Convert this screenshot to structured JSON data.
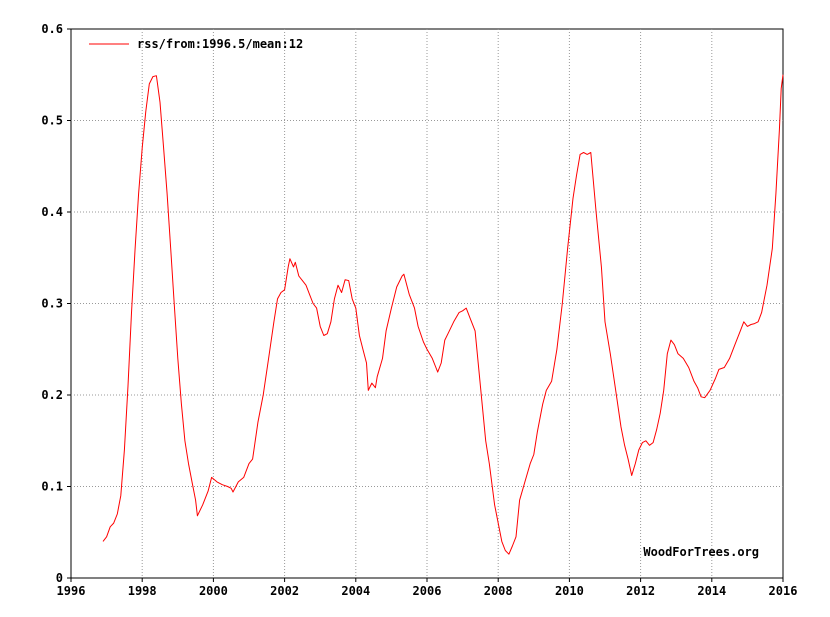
{
  "chart_data": {
    "type": "line",
    "x_unit": "year",
    "xlim": [
      1996,
      2016
    ],
    "ylim": [
      0,
      0.6
    ],
    "x_ticks": [
      "1996",
      "1998",
      "2000",
      "2002",
      "2004",
      "2006",
      "2008",
      "2010",
      "2012",
      "2014",
      "2016"
    ],
    "y_ticks": [
      "0",
      "0.1",
      "0.2",
      "0.3",
      "0.4",
      "0.5",
      "0.6"
    ],
    "grid": true,
    "legend_position": "top-left",
    "credit": "WoodForTrees.org",
    "series": [
      {
        "name": "rss/from:1996.5/mean:12",
        "color": "#ff0000",
        "points": [
          [
            1996.9,
            0.04
          ],
          [
            1997.0,
            0.045
          ],
          [
            1997.1,
            0.056
          ],
          [
            1997.2,
            0.06
          ],
          [
            1997.3,
            0.07
          ],
          [
            1997.4,
            0.09
          ],
          [
            1997.5,
            0.14
          ],
          [
            1997.6,
            0.21
          ],
          [
            1997.7,
            0.29
          ],
          [
            1997.8,
            0.36
          ],
          [
            1997.9,
            0.42
          ],
          [
            1998.0,
            0.47
          ],
          [
            1998.1,
            0.51
          ],
          [
            1998.2,
            0.54
          ],
          [
            1998.3,
            0.548
          ],
          [
            1998.4,
            0.549
          ],
          [
            1998.5,
            0.52
          ],
          [
            1998.6,
            0.47
          ],
          [
            1998.7,
            0.42
          ],
          [
            1998.8,
            0.36
          ],
          [
            1998.9,
            0.3
          ],
          [
            1999.0,
            0.24
          ],
          [
            1999.1,
            0.19
          ],
          [
            1999.2,
            0.15
          ],
          [
            1999.3,
            0.125
          ],
          [
            1999.4,
            0.105
          ],
          [
            1999.5,
            0.085
          ],
          [
            1999.55,
            0.068
          ],
          [
            1999.7,
            0.08
          ],
          [
            1999.85,
            0.095
          ],
          [
            1999.95,
            0.11
          ],
          [
            2000.1,
            0.105
          ],
          [
            2000.25,
            0.102
          ],
          [
            2000.4,
            0.1
          ],
          [
            2000.5,
            0.098
          ],
          [
            2000.55,
            0.094
          ],
          [
            2000.7,
            0.105
          ],
          [
            2000.85,
            0.11
          ],
          [
            2001.0,
            0.125
          ],
          [
            2001.1,
            0.13
          ],
          [
            2001.25,
            0.17
          ],
          [
            2001.4,
            0.2
          ],
          [
            2001.55,
            0.24
          ],
          [
            2001.7,
            0.28
          ],
          [
            2001.8,
            0.305
          ],
          [
            2001.9,
            0.312
          ],
          [
            2002.0,
            0.315
          ],
          [
            2002.1,
            0.34
          ],
          [
            2002.15,
            0.349
          ],
          [
            2002.25,
            0.34
          ],
          [
            2002.3,
            0.345
          ],
          [
            2002.4,
            0.33
          ],
          [
            2002.5,
            0.325
          ],
          [
            2002.6,
            0.32
          ],
          [
            2002.7,
            0.31
          ],
          [
            2002.8,
            0.3
          ],
          [
            2002.9,
            0.295
          ],
          [
            2003.0,
            0.275
          ],
          [
            2003.1,
            0.265
          ],
          [
            2003.2,
            0.267
          ],
          [
            2003.3,
            0.28
          ],
          [
            2003.4,
            0.305
          ],
          [
            2003.5,
            0.32
          ],
          [
            2003.6,
            0.312
          ],
          [
            2003.7,
            0.326
          ],
          [
            2003.8,
            0.325
          ],
          [
            2003.9,
            0.305
          ],
          [
            2004.0,
            0.295
          ],
          [
            2004.1,
            0.265
          ],
          [
            2004.2,
            0.25
          ],
          [
            2004.3,
            0.235
          ],
          [
            2004.35,
            0.205
          ],
          [
            2004.45,
            0.213
          ],
          [
            2004.55,
            0.208
          ],
          [
            2004.6,
            0.22
          ],
          [
            2004.75,
            0.24
          ],
          [
            2004.85,
            0.27
          ],
          [
            2005.0,
            0.295
          ],
          [
            2005.15,
            0.318
          ],
          [
            2005.3,
            0.33
          ],
          [
            2005.35,
            0.332
          ],
          [
            2005.5,
            0.31
          ],
          [
            2005.65,
            0.295
          ],
          [
            2005.75,
            0.275
          ],
          [
            2005.9,
            0.258
          ],
          [
            2006.0,
            0.25
          ],
          [
            2006.15,
            0.24
          ],
          [
            2006.25,
            0.23
          ],
          [
            2006.3,
            0.225
          ],
          [
            2006.4,
            0.235
          ],
          [
            2006.5,
            0.26
          ],
          [
            2006.6,
            0.268
          ],
          [
            2006.75,
            0.28
          ],
          [
            2006.9,
            0.29
          ],
          [
            2007.0,
            0.292
          ],
          [
            2007.1,
            0.295
          ],
          [
            2007.2,
            0.285
          ],
          [
            2007.35,
            0.27
          ],
          [
            2007.5,
            0.21
          ],
          [
            2007.65,
            0.15
          ],
          [
            2007.75,
            0.125
          ],
          [
            2007.9,
            0.08
          ],
          [
            2008.0,
            0.06
          ],
          [
            2008.1,
            0.04
          ],
          [
            2008.2,
            0.03
          ],
          [
            2008.3,
            0.026
          ],
          [
            2008.4,
            0.035
          ],
          [
            2008.5,
            0.045
          ],
          [
            2008.6,
            0.085
          ],
          [
            2008.75,
            0.105
          ],
          [
            2008.9,
            0.125
          ],
          [
            2009.0,
            0.135
          ],
          [
            2009.1,
            0.16
          ],
          [
            2009.25,
            0.19
          ],
          [
            2009.35,
            0.205
          ],
          [
            2009.5,
            0.215
          ],
          [
            2009.65,
            0.25
          ],
          [
            2009.8,
            0.3
          ],
          [
            2009.95,
            0.36
          ],
          [
            2010.1,
            0.415
          ],
          [
            2010.2,
            0.44
          ],
          [
            2010.3,
            0.463
          ],
          [
            2010.4,
            0.465
          ],
          [
            2010.5,
            0.463
          ],
          [
            2010.6,
            0.465
          ],
          [
            2010.75,
            0.4
          ],
          [
            2010.9,
            0.34
          ],
          [
            2011.0,
            0.28
          ],
          [
            2011.15,
            0.245
          ],
          [
            2011.3,
            0.205
          ],
          [
            2011.45,
            0.165
          ],
          [
            2011.55,
            0.145
          ],
          [
            2011.65,
            0.13
          ],
          [
            2011.75,
            0.112
          ],
          [
            2011.85,
            0.125
          ],
          [
            2011.95,
            0.14
          ],
          [
            2012.05,
            0.148
          ],
          [
            2012.15,
            0.15
          ],
          [
            2012.25,
            0.145
          ],
          [
            2012.35,
            0.148
          ],
          [
            2012.45,
            0.162
          ],
          [
            2012.55,
            0.18
          ],
          [
            2012.65,
            0.205
          ],
          [
            2012.75,
            0.245
          ],
          [
            2012.85,
            0.26
          ],
          [
            2012.95,
            0.255
          ],
          [
            2013.05,
            0.245
          ],
          [
            2013.2,
            0.24
          ],
          [
            2013.35,
            0.23
          ],
          [
            2013.5,
            0.215
          ],
          [
            2013.6,
            0.208
          ],
          [
            2013.7,
            0.198
          ],
          [
            2013.8,
            0.197
          ],
          [
            2013.95,
            0.205
          ],
          [
            2014.1,
            0.218
          ],
          [
            2014.2,
            0.228
          ],
          [
            2014.35,
            0.23
          ],
          [
            2014.5,
            0.24
          ],
          [
            2014.65,
            0.255
          ],
          [
            2014.8,
            0.27
          ],
          [
            2014.9,
            0.28
          ],
          [
            2015.0,
            0.275
          ],
          [
            2015.1,
            0.277
          ],
          [
            2015.2,
            0.278
          ],
          [
            2015.3,
            0.28
          ],
          [
            2015.4,
            0.29
          ],
          [
            2015.55,
            0.32
          ],
          [
            2015.7,
            0.36
          ],
          [
            2015.8,
            0.42
          ],
          [
            2015.9,
            0.49
          ],
          [
            2015.95,
            0.535
          ],
          [
            2016.0,
            0.55
          ]
        ]
      }
    ]
  }
}
